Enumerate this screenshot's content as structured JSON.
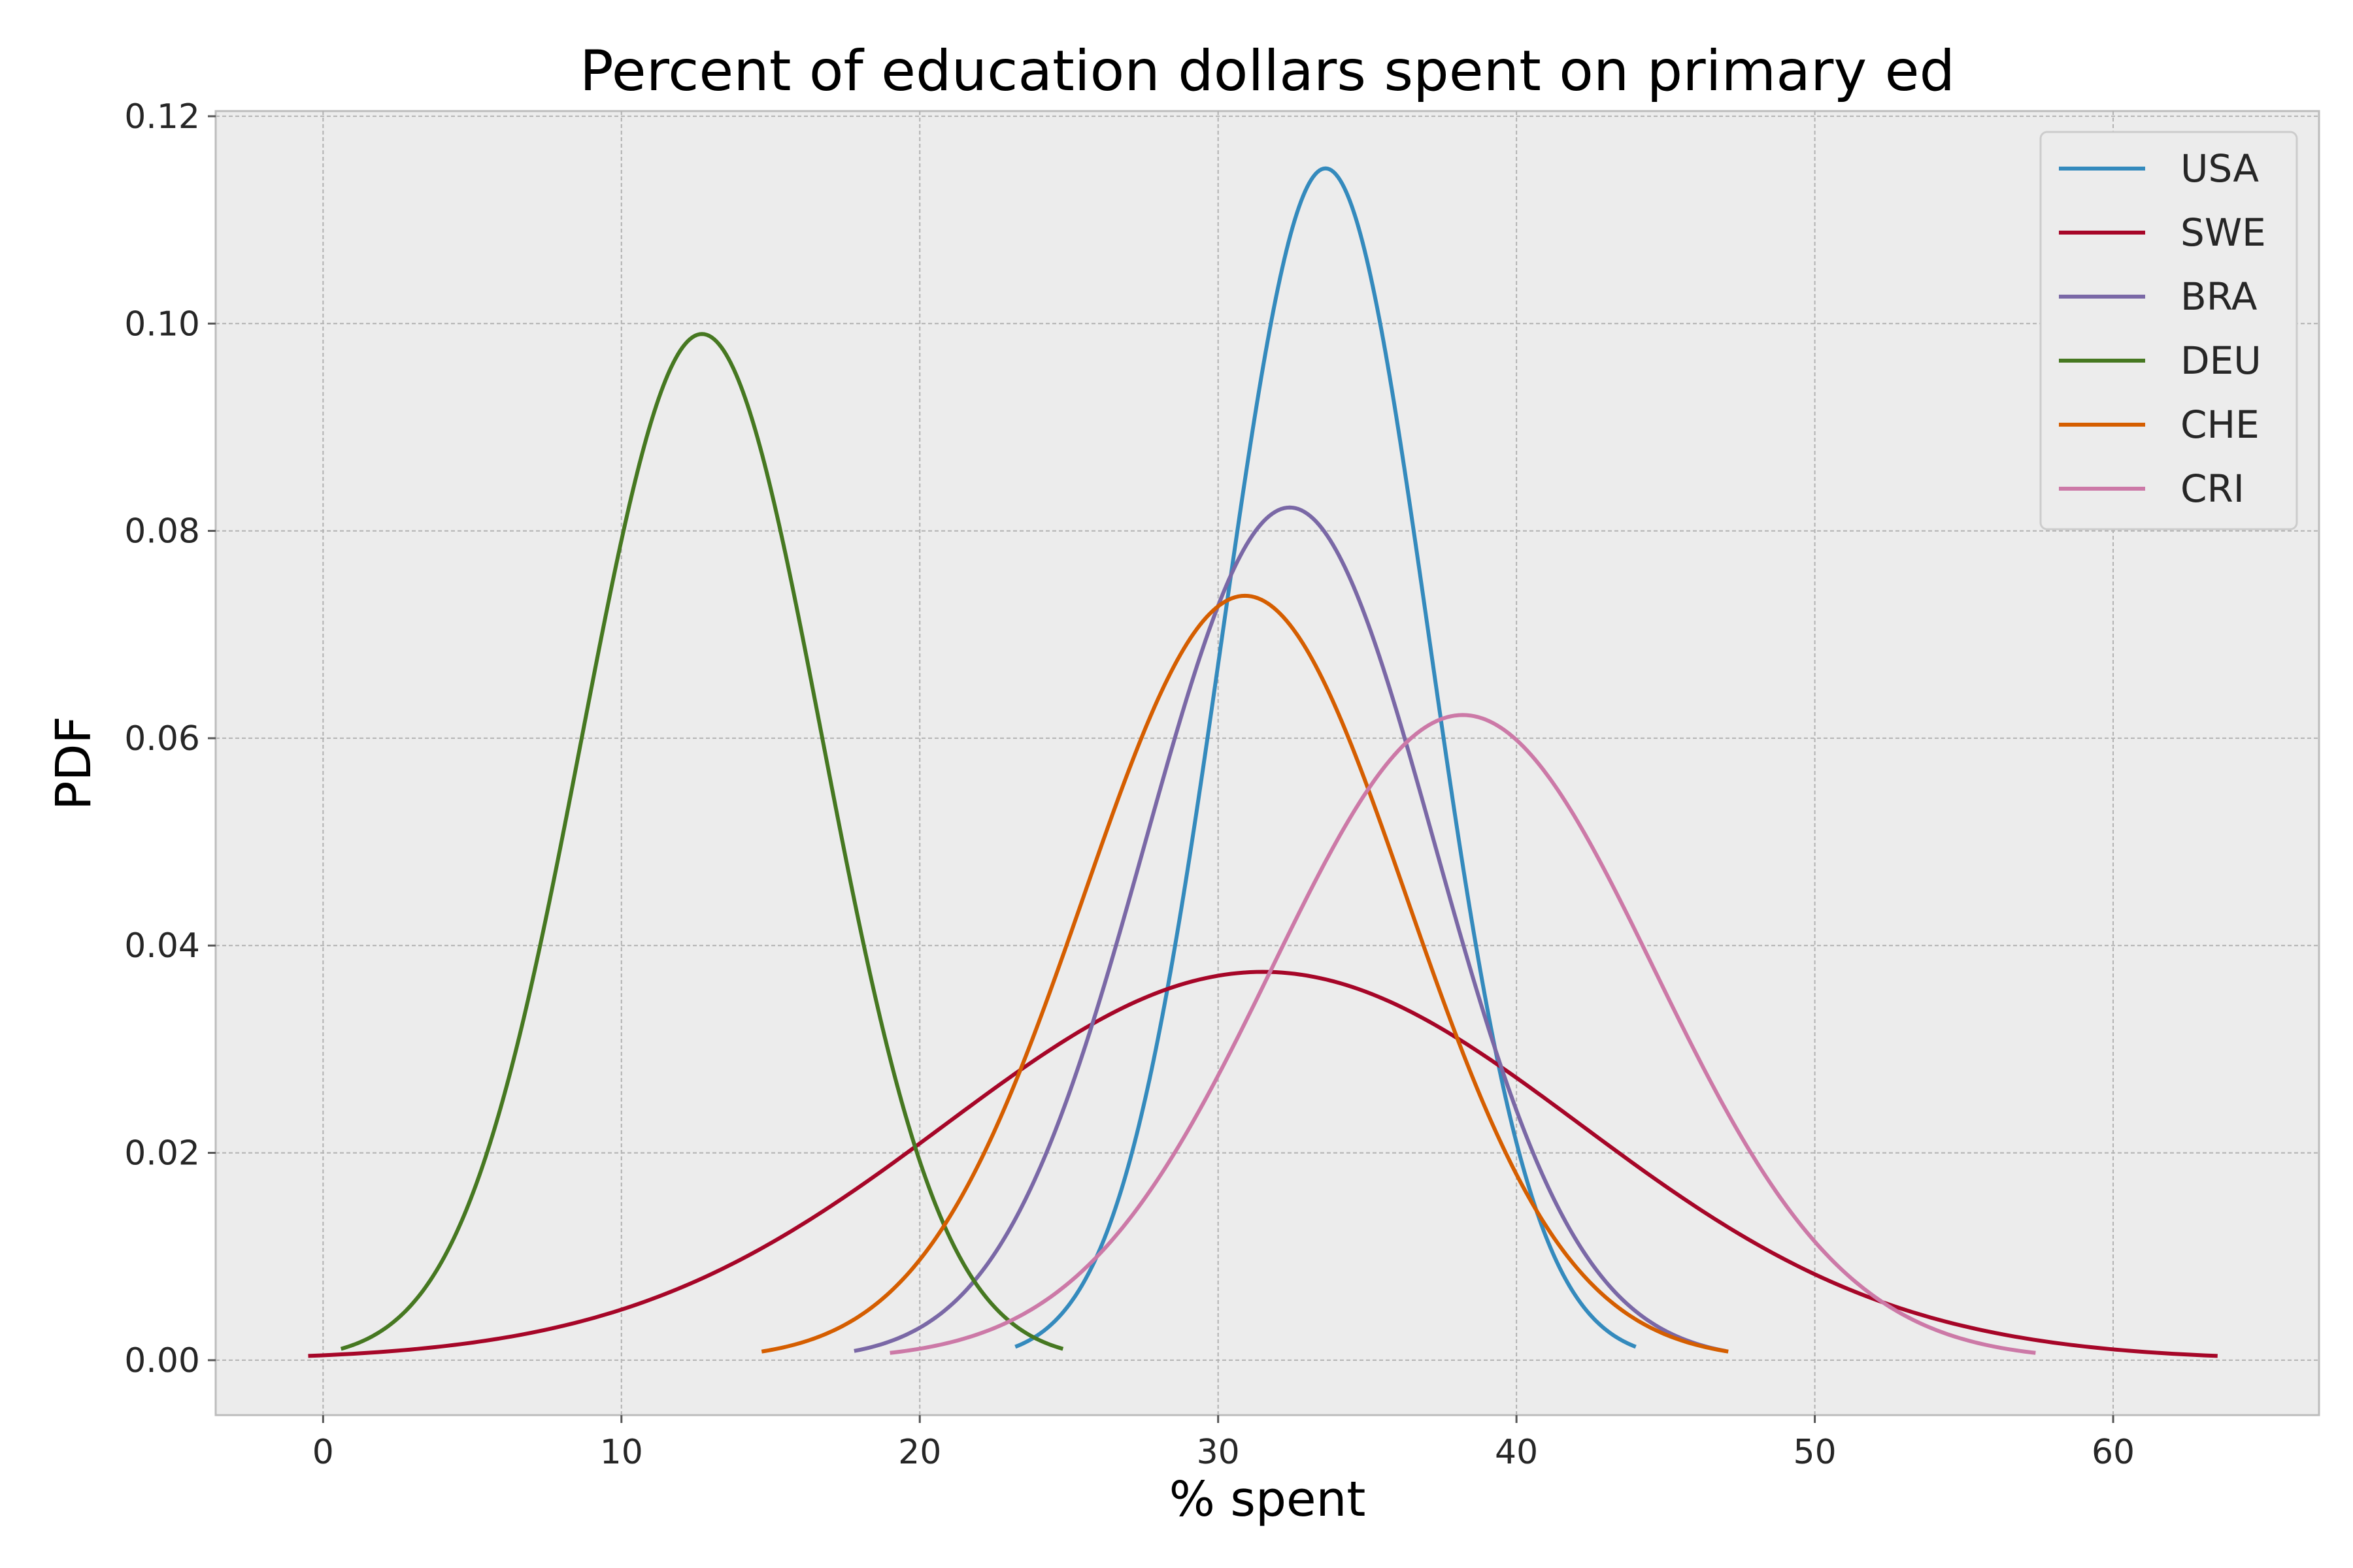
{
  "chart_data": {
    "type": "line",
    "title": "Percent of education dollars spent on primary ed",
    "xlabel": "% spent",
    "ylabel": "PDF",
    "xlim": [
      -3.6,
      66.9
    ],
    "ylim": [
      -0.0053,
      0.1205
    ],
    "xticks": [
      0,
      10,
      20,
      30,
      40,
      50,
      60
    ],
    "xtick_labels": [
      "0",
      "10",
      "20",
      "30",
      "40",
      "50",
      "60"
    ],
    "yticks": [
      0.0,
      0.02,
      0.04,
      0.06,
      0.08,
      0.1,
      0.12
    ],
    "ytick_labels": [
      "0.00",
      "0.02",
      "0.04",
      "0.06",
      "0.08",
      "0.10",
      "0.12"
    ],
    "grid": true,
    "background": "#ececec",
    "legend_position": "top-right",
    "series": [
      {
        "name": "USA",
        "color": "#348abd",
        "mean": 33.6,
        "std": 3.47,
        "x_range": [
          23.2,
          44.0
        ]
      },
      {
        "name": "SWE",
        "color": "#a60628",
        "mean": 31.5,
        "std": 10.65,
        "x_range": [
          -0.5,
          63.5
        ]
      },
      {
        "name": "BRA",
        "color": "#7a68a6",
        "mean": 32.4,
        "std": 4.85,
        "x_range": [
          17.8,
          47.0
        ]
      },
      {
        "name": "DEU",
        "color": "#467821",
        "mean": 12.7,
        "std": 4.03,
        "x_range": [
          0.6,
          24.8
        ]
      },
      {
        "name": "CHE",
        "color": "#d55e00",
        "mean": 30.9,
        "std": 5.41,
        "x_range": [
          14.7,
          47.1
        ]
      },
      {
        "name": "CRI",
        "color": "#cc79a7",
        "mean": 38.2,
        "std": 6.41,
        "x_range": [
          19.0,
          57.4
        ]
      }
    ]
  }
}
